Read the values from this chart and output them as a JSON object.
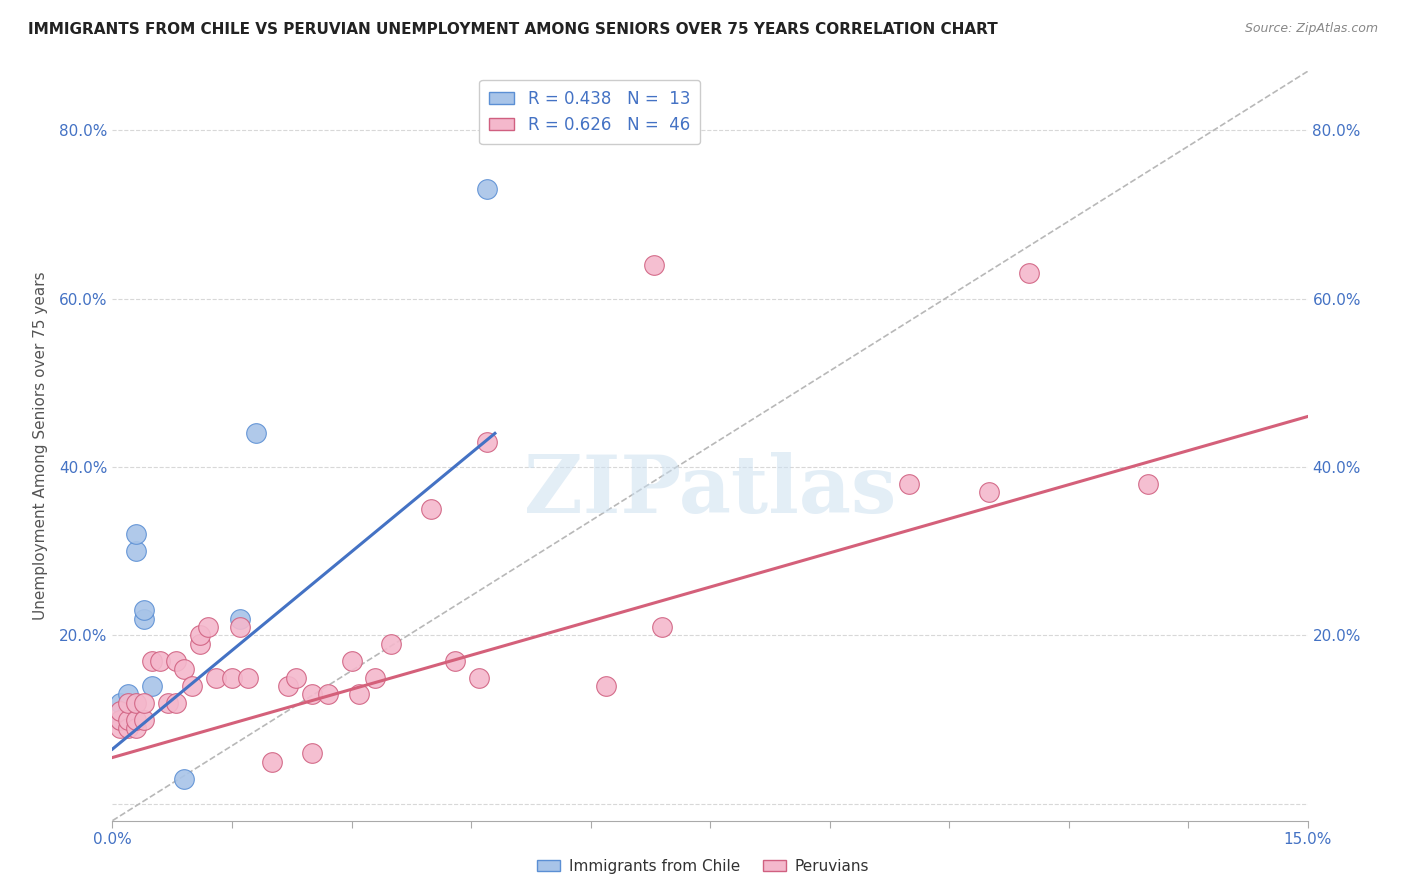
{
  "title": "IMMIGRANTS FROM CHILE VS PERUVIAN UNEMPLOYMENT AMONG SENIORS OVER 75 YEARS CORRELATION CHART",
  "source": "Source: ZipAtlas.com",
  "ylabel": "Unemployment Among Seniors over 75 years",
  "xlim": [
    0.0,
    0.15
  ],
  "ylim": [
    -0.02,
    0.87
  ],
  "xticks": [
    0.0,
    0.015,
    0.03,
    0.045,
    0.06,
    0.075,
    0.09,
    0.105,
    0.12,
    0.135,
    0.15
  ],
  "xtick_labels_show": [
    "0.0%",
    "",
    "",
    "",
    "",
    "",
    "",
    "",
    "",
    "",
    "15.0%"
  ],
  "yticks": [
    0.0,
    0.2,
    0.4,
    0.6,
    0.8
  ],
  "ytick_labels": [
    "",
    "20.0%",
    "40.0%",
    "60.0%",
    "80.0%"
  ],
  "legend_r1": "R = 0.438",
  "legend_n1": "N =  13",
  "legend_r2": "R = 0.626",
  "legend_n2": "N =  46",
  "color_chile_fill": "#a8c4e8",
  "color_chile_edge": "#5b8fd4",
  "color_peru_fill": "#f4b8cc",
  "color_peru_edge": "#d06080",
  "color_chile_line": "#4472c4",
  "color_peru_line": "#d4607a",
  "color_diag_line": "#b8b8b8",
  "watermark_text": "ZIPatlas",
  "chile_scatter_x": [
    0.001,
    0.001,
    0.002,
    0.002,
    0.003,
    0.003,
    0.004,
    0.004,
    0.005,
    0.009,
    0.016,
    0.018,
    0.047
  ],
  "chile_scatter_y": [
    0.1,
    0.12,
    0.11,
    0.13,
    0.3,
    0.32,
    0.22,
    0.23,
    0.14,
    0.03,
    0.22,
    0.44,
    0.73
  ],
  "peru_scatter_x": [
    0.001,
    0.001,
    0.001,
    0.002,
    0.002,
    0.002,
    0.003,
    0.003,
    0.003,
    0.004,
    0.004,
    0.005,
    0.006,
    0.007,
    0.008,
    0.008,
    0.009,
    0.01,
    0.011,
    0.011,
    0.012,
    0.013,
    0.015,
    0.016,
    0.017,
    0.02,
    0.022,
    0.023,
    0.025,
    0.025,
    0.027,
    0.03,
    0.031,
    0.033,
    0.035,
    0.04,
    0.043,
    0.046,
    0.047,
    0.062,
    0.068,
    0.069,
    0.1,
    0.11,
    0.115,
    0.13
  ],
  "peru_scatter_y": [
    0.09,
    0.1,
    0.11,
    0.09,
    0.1,
    0.12,
    0.09,
    0.1,
    0.12,
    0.1,
    0.12,
    0.17,
    0.17,
    0.12,
    0.12,
    0.17,
    0.16,
    0.14,
    0.19,
    0.2,
    0.21,
    0.15,
    0.15,
    0.21,
    0.15,
    0.05,
    0.14,
    0.15,
    0.06,
    0.13,
    0.13,
    0.17,
    0.13,
    0.15,
    0.19,
    0.35,
    0.17,
    0.15,
    0.43,
    0.14,
    0.64,
    0.21,
    0.38,
    0.37,
    0.63,
    0.38
  ],
  "chile_trend_x": [
    0.0,
    0.048
  ],
  "chile_trend_y": [
    0.065,
    0.44
  ],
  "peru_trend_x": [
    0.0,
    0.15
  ],
  "peru_trend_y": [
    0.055,
    0.46
  ],
  "background_color": "#ffffff",
  "grid_color": "#d8d8d8"
}
